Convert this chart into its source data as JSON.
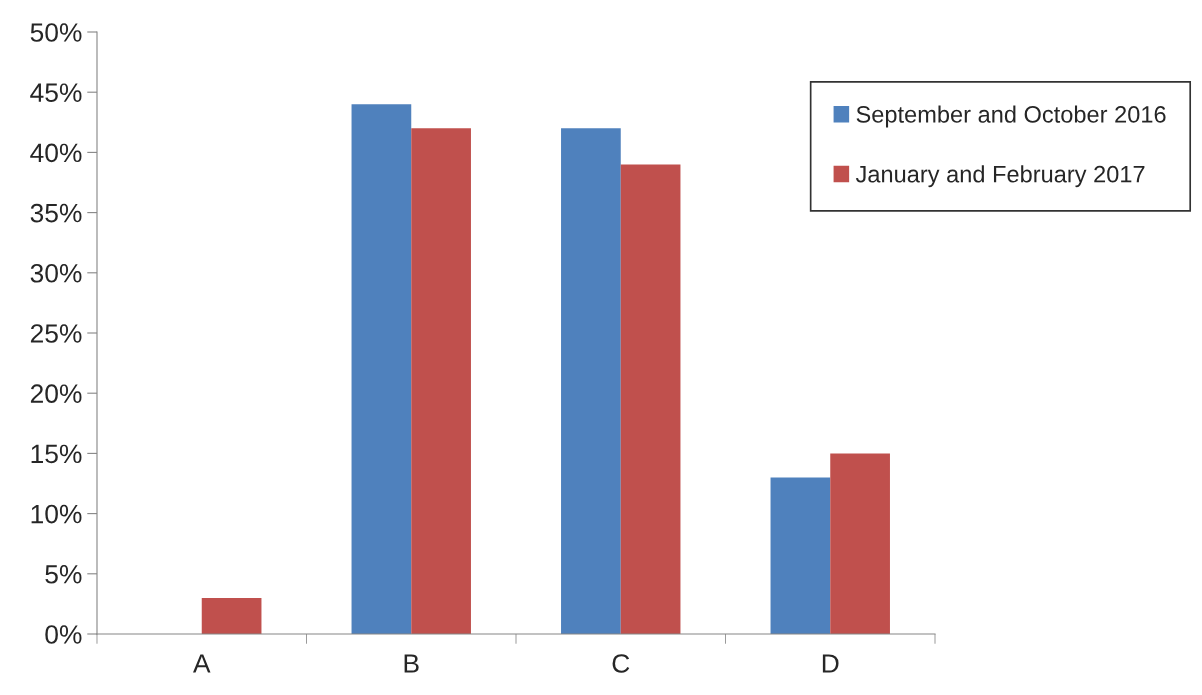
{
  "chart_data": {
    "type": "bar",
    "categories": [
      "A",
      "B",
      "C",
      "D"
    ],
    "series": [
      {
        "name": "September and October 2016",
        "color": "#4f81bd",
        "values": [
          null,
          44,
          42,
          13
        ]
      },
      {
        "name": "January and February 2017",
        "color": "#c0504d",
        "values": [
          3,
          42,
          39,
          15
        ]
      }
    ],
    "ylim": [
      0,
      50
    ],
    "yticks": [
      {
        "value": 0,
        "label": "0%"
      },
      {
        "value": 5,
        "label": "5%"
      },
      {
        "value": 10,
        "label": "10%"
      },
      {
        "value": 15,
        "label": "15%"
      },
      {
        "value": 20,
        "label": "20%"
      },
      {
        "value": 25,
        "label": "25%"
      },
      {
        "value": 30,
        "label": "30%"
      },
      {
        "value": 35,
        "label": "35%"
      },
      {
        "value": 40,
        "label": "40%"
      },
      {
        "value": 45,
        "label": "45%"
      },
      {
        "value": 50,
        "label": "50%"
      }
    ],
    "grid": false,
    "legend": "top right"
  }
}
